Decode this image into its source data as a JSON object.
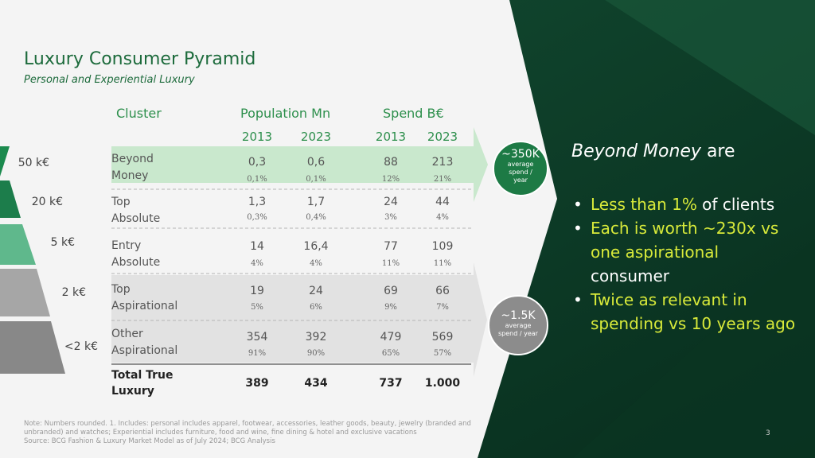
{
  "title": "Luxury Consumer Pyramid",
  "subtitle": "Personal and Experiential Luxury",
  "table": {
    "headers": {
      "cluster": "Cluster",
      "population": "Population Mn",
      "spend": "Spend B€"
    },
    "years": [
      "2013",
      "2023",
      "2013",
      "2023"
    ],
    "rows": [
      {
        "label1": "Beyond",
        "label2": "Money",
        "pop2013": "0,3",
        "pop2013_pct": "0,1%",
        "pop2023": "0,6",
        "pop2023_pct": "0,1%",
        "sp2013": "88",
        "sp2013_pct": "12%",
        "sp2023": "213",
        "sp2023_pct": "21%"
      },
      {
        "label1": "Top",
        "label2": "Absolute",
        "pop2013": "1,3",
        "pop2013_pct": "0,3%",
        "pop2023": "1,7",
        "pop2023_pct": "0,4%",
        "sp2013": "24",
        "sp2013_pct": "3%",
        "sp2023": "44",
        "sp2023_pct": "4%"
      },
      {
        "label1": "Entry",
        "label2": "Absolute",
        "pop2013": "14",
        "pop2013_pct": "4%",
        "pop2023": "16,4",
        "pop2023_pct": "4%",
        "sp2013": "77",
        "sp2013_pct": "11%",
        "sp2023": "109",
        "sp2023_pct": "11%"
      },
      {
        "label1": "Top",
        "label2": "Aspirational",
        "pop2013": "19",
        "pop2013_pct": "5%",
        "pop2023": "24",
        "pop2023_pct": "6%",
        "sp2013": "69",
        "sp2013_pct": "9%",
        "sp2023": "66",
        "sp2023_pct": "7%"
      },
      {
        "label1": "Other",
        "label2": "Aspirational",
        "pop2013": "354",
        "pop2013_pct": "91%",
        "pop2023": "392",
        "pop2023_pct": "90%",
        "sp2013": "479",
        "sp2013_pct": "65%",
        "sp2023": "569",
        "sp2023_pct": "57%"
      }
    ],
    "total": {
      "label1": "Total True",
      "label2": "Luxury",
      "pop2013": "389",
      "pop2023": "434",
      "sp2013": "737",
      "sp2023": "1.000"
    }
  },
  "pyramid_levels": [
    "50 k€",
    "20 k€",
    "5 k€",
    "2 k€",
    "<2 k€"
  ],
  "badges": {
    "top": {
      "value": "~350K",
      "line1": "average",
      "line2": "spend /",
      "line3": "year"
    },
    "bottom": {
      "value": "~1.5K",
      "line1": "average",
      "line2": "spend / year"
    }
  },
  "right_panel": {
    "title_italic": "Beyond Money",
    "title_rest": " are",
    "bullets": [
      {
        "highlight": "Less than 1%",
        "rest": " of clients"
      },
      {
        "highlight": "Each is worth ~230x vs one aspirational",
        "rest": " consumer"
      },
      {
        "highlight": "Twice as relevant in spending vs 10 years ago",
        "rest": ""
      }
    ]
  },
  "footer": {
    "note1": "Note: Numbers rounded. 1. Includes: personal includes apparel, footwear, accessories, leather goods, beauty, jewelry (branded and unbranded) and watches; Experiential includes furniture, food and wine, fine dining & hotel and exclusive vacations",
    "note2": "Source: BCG Fashion & Luxury Market Model as of July 2024; BCG Analysis",
    "page": "3"
  },
  "colors": {
    "dark_green": "#0c3a26",
    "accent_green": "#2d8f4c",
    "highlight": "#d8ea3a",
    "light_green_band": "#c9e8cd",
    "grey_band": "#e2e2e2"
  }
}
